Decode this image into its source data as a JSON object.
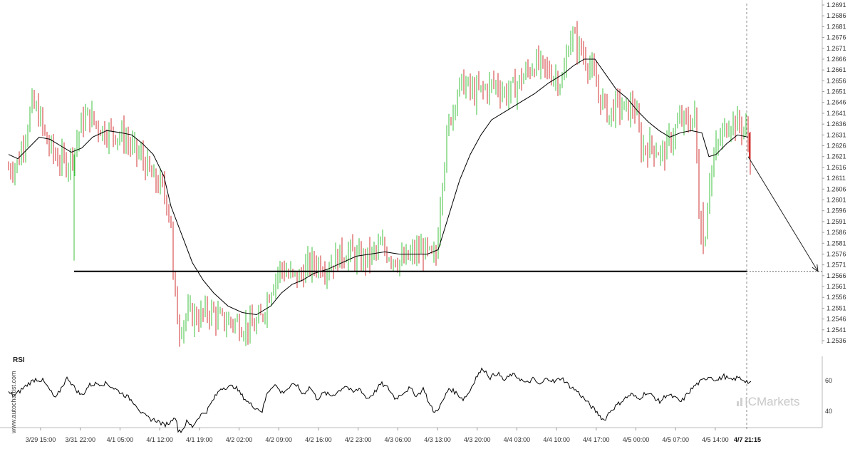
{
  "watermark": {
    "side_text": "www.autochartist.com",
    "logo_text": "ICMarkets"
  },
  "colors": {
    "bull": "#3cc23c",
    "bear": "#d03030",
    "ma": "#000000",
    "support": "#000000",
    "grid_axis": "#bbbbbb"
  },
  "chart_data": [
    {
      "type": "candlestick",
      "title": "",
      "y_ticks": [
        "1.2691",
        "1.2686",
        "1.2681",
        "1.2676",
        "1.2671",
        "1.2666",
        "1.2661",
        "1.2656",
        "1.2651",
        "1.2646",
        "1.2641",
        "1.2636",
        "1.2631",
        "1.2626",
        "1.2621",
        "1.2616",
        "1.2611",
        "1.2606",
        "1.2601",
        "1.2596",
        "1.2591",
        "1.2586",
        "1.2581",
        "1.2576",
        "1.2571",
        "1.2566",
        "1.2561",
        "1.2556",
        "1.2551",
        "1.2546",
        "1.2541",
        "1.2536"
      ],
      "ylim": [
        1.2533,
        1.2692
      ],
      "x_ticks": [
        "3/29 15:00",
        "3/31 22:00",
        "4/1 05:00",
        "4/1 12:00",
        "4/1 19:00",
        "4/2 02:00",
        "4/2 09:00",
        "4/2 16:00",
        "4/2 23:00",
        "4/3 06:00",
        "4/3 13:00",
        "4/3 20:00",
        "4/4 03:00",
        "4/4 10:00",
        "4/4 17:00",
        "4/5 00:00",
        "4/5 07:00",
        "4/5 14:00"
      ],
      "x_last_label": "4/7 21:15",
      "support_level": 1.2568,
      "forecast_target": 1.2568,
      "price_path": [
        [
          0,
          1.2623
        ],
        [
          10,
          1.2615
        ],
        [
          25,
          1.2618
        ],
        [
          38,
          1.2635
        ],
        [
          45,
          1.2645
        ],
        [
          55,
          1.264
        ],
        [
          65,
          1.2628
        ],
        [
          80,
          1.262
        ],
        [
          95,
          1.2618
        ],
        [
          105,
          1.2625
        ],
        [
          115,
          1.2637
        ],
        [
          125,
          1.264
        ],
        [
          135,
          1.2636
        ],
        [
          145,
          1.2633
        ],
        [
          160,
          1.2632
        ],
        [
          175,
          1.263
        ],
        [
          185,
          1.2625
        ],
        [
          200,
          1.262
        ],
        [
          215,
          1.261
        ],
        [
          225,
          1.2608
        ],
        [
          235,
          1.26
        ],
        [
          240,
          1.259
        ],
        [
          243,
          1.2565
        ],
        [
          248,
          1.2548
        ],
        [
          252,
          1.2542
        ],
        [
          262,
          1.2548
        ],
        [
          280,
          1.2547
        ],
        [
          295,
          1.255
        ],
        [
          310,
          1.2545
        ],
        [
          325,
          1.2545
        ],
        [
          340,
          1.2543
        ],
        [
          355,
          1.2542
        ],
        [
          365,
          1.2545
        ],
        [
          375,
          1.2555
        ],
        [
          385,
          1.2565
        ],
        [
          395,
          1.257
        ],
        [
          405,
          1.2566
        ],
        [
          420,
          1.2565
        ],
        [
          430,
          1.257
        ],
        [
          445,
          1.2572
        ],
        [
          460,
          1.257
        ],
        [
          475,
          1.2575
        ],
        [
          490,
          1.2577
        ],
        [
          505,
          1.2573
        ],
        [
          520,
          1.2575
        ],
        [
          535,
          1.2579
        ],
        [
          550,
          1.2575
        ],
        [
          565,
          1.2572
        ],
        [
          580,
          1.2576
        ],
        [
          595,
          1.2578
        ],
        [
          608,
          1.2573
        ],
        [
          612,
          1.2575
        ],
        [
          615,
          1.2588
        ],
        [
          620,
          1.261
        ],
        [
          630,
          1.2636
        ],
        [
          640,
          1.265
        ],
        [
          650,
          1.2655
        ],
        [
          665,
          1.265
        ],
        [
          680,
          1.2652
        ],
        [
          695,
          1.2655
        ],
        [
          710,
          1.265
        ],
        [
          720,
          1.2652
        ],
        [
          735,
          1.2658
        ],
        [
          750,
          1.2664
        ],
        [
          760,
          1.2662
        ],
        [
          770,
          1.266
        ],
        [
          780,
          1.2658
        ],
        [
          790,
          1.2655
        ],
        [
          800,
          1.2678
        ],
        [
          815,
          1.267
        ],
        [
          828,
          1.2663
        ],
        [
          840,
          1.265
        ],
        [
          855,
          1.264
        ],
        [
          865,
          1.2645
        ],
        [
          880,
          1.2642
        ],
        [
          890,
          1.2645
        ],
        [
          900,
          1.2625
        ],
        [
          915,
          1.2626
        ],
        [
          930,
          1.2622
        ],
        [
          940,
          1.2628
        ],
        [
          955,
          1.2638
        ],
        [
          965,
          1.2636
        ],
        [
          975,
          1.264
        ],
        [
          982,
          1.259
        ],
        [
          988,
          1.2578
        ],
        [
          995,
          1.261
        ],
        [
          1005,
          1.2624
        ],
        [
          1015,
          1.2632
        ],
        [
          1025,
          1.2638
        ],
        [
          1035,
          1.2636
        ],
        [
          1046,
          1.2634
        ],
        [
          1050,
          1.2628
        ],
        [
          1053,
          1.262
        ]
      ],
      "ma_path": [
        [
          12,
          1.2622
        ],
        [
          25,
          1.262
        ],
        [
          40,
          1.2625
        ],
        [
          55,
          1.263
        ],
        [
          70,
          1.2629
        ],
        [
          85,
          1.2626
        ],
        [
          100,
          1.2623
        ],
        [
          115,
          1.2625
        ],
        [
          130,
          1.263
        ],
        [
          150,
          1.2633
        ],
        [
          170,
          1.2632
        ],
        [
          185,
          1.2631
        ],
        [
          200,
          1.2627
        ],
        [
          215,
          1.2622
        ],
        [
          230,
          1.2612
        ],
        [
          240,
          1.2598
        ],
        [
          255,
          1.2585
        ],
        [
          270,
          1.2572
        ],
        [
          285,
          1.2564
        ],
        [
          300,
          1.2558
        ],
        [
          320,
          1.2552
        ],
        [
          340,
          1.2549
        ],
        [
          360,
          1.2548
        ],
        [
          380,
          1.2552
        ],
        [
          395,
          1.2558
        ],
        [
          410,
          1.2562
        ],
        [
          425,
          1.2564
        ],
        [
          440,
          1.2567
        ],
        [
          460,
          1.2569
        ],
        [
          480,
          1.2572
        ],
        [
          500,
          1.2575
        ],
        [
          520,
          1.2576
        ],
        [
          540,
          1.2577
        ],
        [
          560,
          1.2576
        ],
        [
          580,
          1.2576
        ],
        [
          600,
          1.2576
        ],
        [
          615,
          1.2578
        ],
        [
          630,
          1.2594
        ],
        [
          645,
          1.261
        ],
        [
          660,
          1.2622
        ],
        [
          675,
          1.2631
        ],
        [
          690,
          1.2638
        ],
        [
          710,
          1.2642
        ],
        [
          730,
          1.2646
        ],
        [
          750,
          1.265
        ],
        [
          770,
          1.2655
        ],
        [
          790,
          1.2659
        ],
        [
          805,
          1.2663
        ],
        [
          820,
          1.2666
        ],
        [
          835,
          1.2666
        ],
        [
          850,
          1.2659
        ],
        [
          865,
          1.2652
        ],
        [
          880,
          1.2648
        ],
        [
          895,
          1.2642
        ],
        [
          910,
          1.2637
        ],
        [
          925,
          1.2633
        ],
        [
          940,
          1.263
        ],
        [
          955,
          1.2632
        ],
        [
          970,
          1.2633
        ],
        [
          985,
          1.2632
        ],
        [
          995,
          1.2621
        ],
        [
          1005,
          1.2622
        ],
        [
          1020,
          1.2627
        ],
        [
          1035,
          1.2631
        ],
        [
          1050,
          1.263
        ]
      ]
    },
    {
      "type": "line",
      "title": "RSI",
      "y_ticks": [
        "60",
        "40"
      ],
      "ylim": [
        25,
        75
      ],
      "rsi_path": [
        [
          12,
          52
        ],
        [
          20,
          50
        ],
        [
          30,
          54
        ],
        [
          40,
          58
        ],
        [
          50,
          61
        ],
        [
          60,
          60
        ],
        [
          68,
          55
        ],
        [
          78,
          48
        ],
        [
          88,
          57
        ],
        [
          95,
          62
        ],
        [
          105,
          55
        ],
        [
          115,
          50
        ],
        [
          125,
          57
        ],
        [
          135,
          58
        ],
        [
          150,
          58
        ],
        [
          160,
          55
        ],
        [
          170,
          52
        ],
        [
          180,
          49
        ],
        [
          190,
          45
        ],
        [
          200,
          38
        ],
        [
          210,
          35
        ],
        [
          220,
          34
        ],
        [
          230,
          31
        ],
        [
          240,
          33
        ],
        [
          245,
          38
        ],
        [
          250,
          28
        ],
        [
          255,
          27
        ],
        [
          262,
          33
        ],
        [
          270,
          30
        ],
        [
          280,
          37
        ],
        [
          290,
          40
        ],
        [
          300,
          48
        ],
        [
          310,
          55
        ],
        [
          320,
          56
        ],
        [
          330,
          56
        ],
        [
          340,
          50
        ],
        [
          350,
          45
        ],
        [
          360,
          42
        ],
        [
          368,
          40
        ],
        [
          375,
          52
        ],
        [
          385,
          58
        ],
        [
          395,
          52
        ],
        [
          405,
          55
        ],
        [
          415,
          58
        ],
        [
          425,
          51
        ],
        [
          435,
          56
        ],
        [
          445,
          48
        ],
        [
          455,
          52
        ],
        [
          465,
          50
        ],
        [
          475,
          53
        ],
        [
          485,
          57
        ],
        [
          495,
          52
        ],
        [
          505,
          55
        ],
        [
          515,
          48
        ],
        [
          525,
          52
        ],
        [
          535,
          58
        ],
        [
          545,
          55
        ],
        [
          555,
          48
        ],
        [
          565,
          52
        ],
        [
          575,
          55
        ],
        [
          585,
          50
        ],
        [
          595,
          55
        ],
        [
          602,
          45
        ],
        [
          610,
          39
        ],
        [
          620,
          45
        ],
        [
          630,
          55
        ],
        [
          640,
          52
        ],
        [
          650,
          48
        ],
        [
          658,
          52
        ],
        [
          668,
          62
        ],
        [
          678,
          68
        ],
        [
          688,
          62
        ],
        [
          698,
          65
        ],
        [
          708,
          60
        ],
        [
          718,
          64
        ],
        [
          728,
          62
        ],
        [
          738,
          58
        ],
        [
          748,
          61
        ],
        [
          758,
          57
        ],
        [
          768,
          62
        ],
        [
          778,
          59
        ],
        [
          788,
          62
        ],
        [
          798,
          57
        ],
        [
          810,
          53
        ],
        [
          820,
          48
        ],
        [
          830,
          43
        ],
        [
          840,
          38
        ],
        [
          848,
          34
        ],
        [
          856,
          40
        ],
        [
          866,
          44
        ],
        [
          876,
          48
        ],
        [
          886,
          51
        ],
        [
          896,
          48
        ],
        [
          906,
          52
        ],
        [
          916,
          50
        ],
        [
          926,
          46
        ],
        [
          936,
          51
        ],
        [
          946,
          49
        ],
        [
          956,
          46
        ],
        [
          966,
          52
        ],
        [
          976,
          57
        ],
        [
          986,
          60
        ],
        [
          996,
          63
        ],
        [
          1006,
          60
        ],
        [
          1016,
          63
        ],
        [
          1026,
          60
        ],
        [
          1036,
          62
        ],
        [
          1046,
          60
        ],
        [
          1054,
          58
        ]
      ]
    }
  ]
}
